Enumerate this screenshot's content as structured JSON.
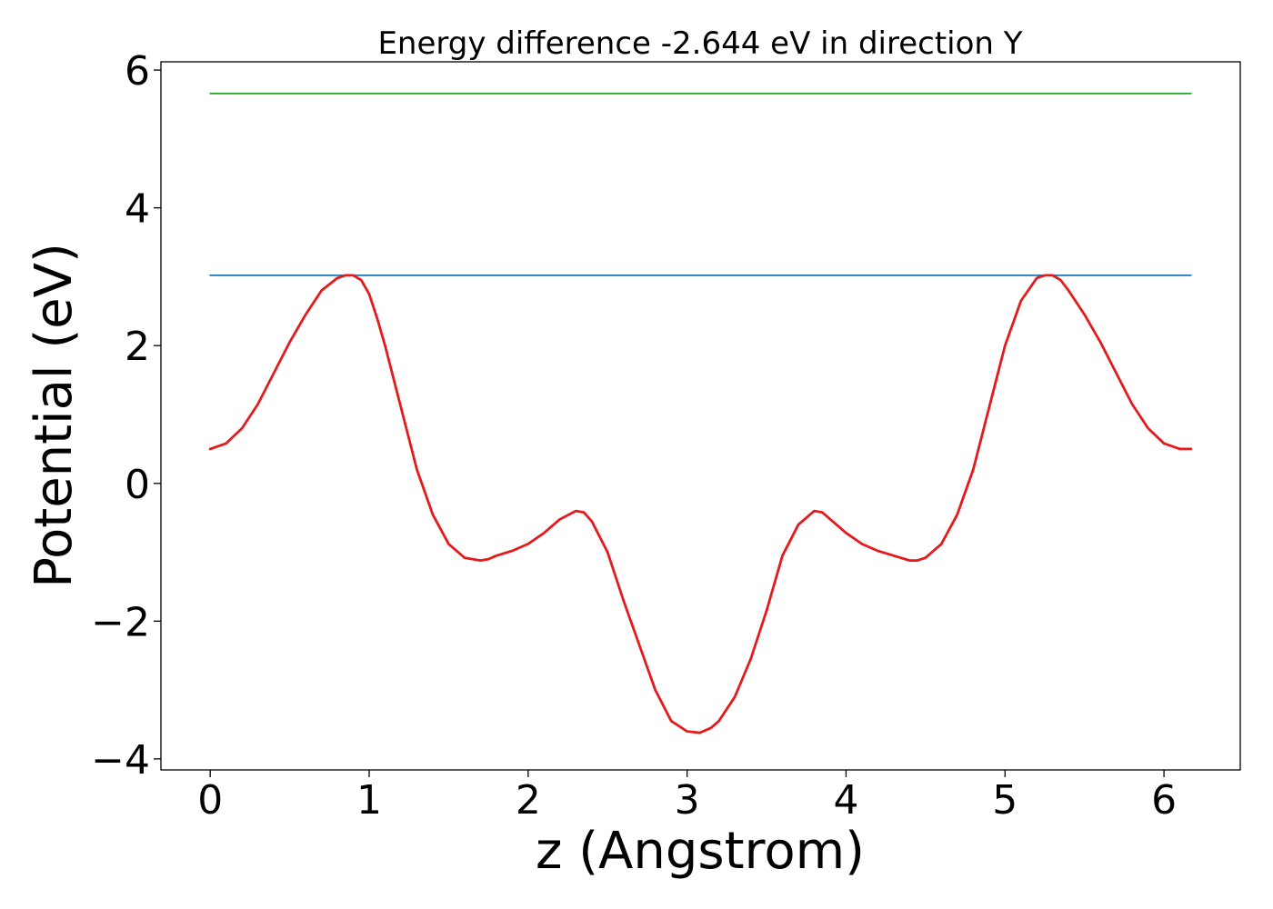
{
  "chart_data": {
    "type": "line",
    "title": "Energy difference -2.644 eV in direction Y",
    "xlabel": "z (Angstrom)",
    "ylabel": "Potential (eV)",
    "xlim": [
      -0.31,
      6.48
    ],
    "ylim": [
      -4.16,
      6.12
    ],
    "xticks": [
      0,
      1,
      2,
      3,
      4,
      5,
      6
    ],
    "yticks": [
      -4,
      -2,
      0,
      2,
      4,
      6
    ],
    "xtick_labels": [
      "0",
      "1",
      "2",
      "3",
      "4",
      "5",
      "6"
    ],
    "ytick_labels": [
      "−4",
      "−2",
      "0",
      "2",
      "4",
      "6"
    ],
    "grid": false,
    "legend": "none",
    "series": [
      {
        "color": "#2ca02c",
        "x": [
          0,
          6.17
        ],
        "y": [
          5.66,
          5.66
        ]
      },
      {
        "color": "#1f77b4",
        "x": [
          0,
          6.17
        ],
        "y": [
          3.02,
          3.02
        ]
      },
      {
        "color": "#e41a1c",
        "x": [
          0,
          0.1,
          0.2,
          0.3,
          0.4,
          0.5,
          0.6,
          0.7,
          0.8,
          0.85,
          0.9,
          0.95,
          1.0,
          1.05,
          1.1,
          1.2,
          1.3,
          1.4,
          1.5,
          1.6,
          1.7,
          1.75,
          1.8,
          1.9,
          2.0,
          2.1,
          2.2,
          2.3,
          2.35,
          2.4,
          2.5,
          2.6,
          2.7,
          2.8,
          2.9,
          3.0,
          3.08,
          3.15,
          3.2,
          3.3,
          3.4,
          3.5,
          3.6,
          3.7,
          3.8,
          3.85,
          3.9,
          4.0,
          4.1,
          4.2,
          4.3,
          4.4,
          4.45,
          4.5,
          4.6,
          4.7,
          4.8,
          4.9,
          5.0,
          5.1,
          5.2,
          5.25,
          5.3,
          5.35,
          5.4,
          5.5,
          5.6,
          5.7,
          5.8,
          5.9,
          6.0,
          6.1,
          6.17
        ],
        "y": [
          0.5,
          0.58,
          0.8,
          1.15,
          1.6,
          2.05,
          2.45,
          2.8,
          2.98,
          3.02,
          3.02,
          2.95,
          2.75,
          2.4,
          2.0,
          1.1,
          0.2,
          -0.45,
          -0.88,
          -1.08,
          -1.12,
          -1.1,
          -1.05,
          -0.98,
          -0.88,
          -0.72,
          -0.52,
          -0.4,
          -0.42,
          -0.55,
          -1.0,
          -1.7,
          -2.35,
          -3.0,
          -3.45,
          -3.6,
          -3.62,
          -3.55,
          -3.45,
          -3.1,
          -2.55,
          -1.85,
          -1.05,
          -0.6,
          -0.4,
          -0.42,
          -0.52,
          -0.72,
          -0.88,
          -0.98,
          -1.05,
          -1.12,
          -1.12,
          -1.08,
          -0.88,
          -0.45,
          0.2,
          1.1,
          2.0,
          2.65,
          2.98,
          3.02,
          3.02,
          2.95,
          2.8,
          2.45,
          2.05,
          1.6,
          1.15,
          0.8,
          0.58,
          0.5,
          0.5
        ]
      }
    ]
  }
}
